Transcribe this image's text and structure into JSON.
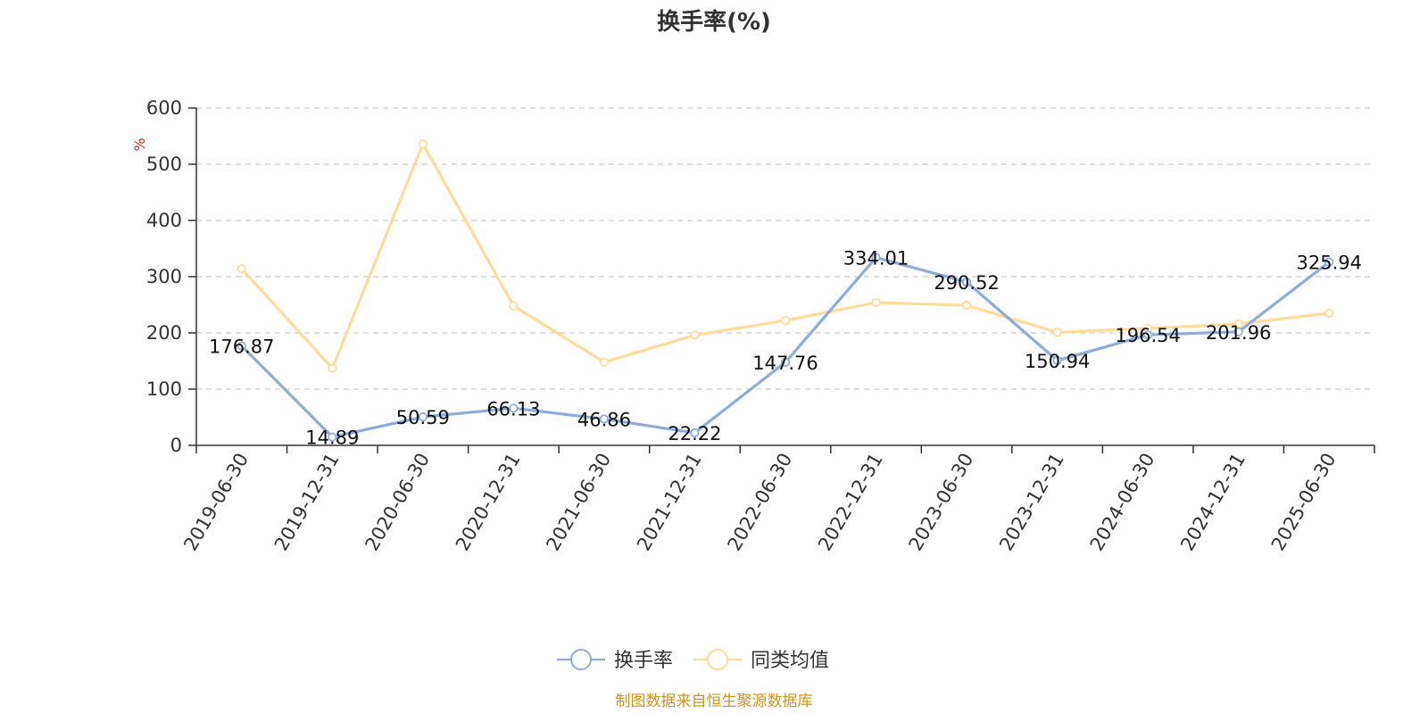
{
  "chart_data": {
    "type": "line",
    "title": "换手率(%)",
    "ylabel": "%",
    "ylim": [
      0,
      600
    ],
    "yticks": [
      0,
      100,
      200,
      300,
      400,
      500,
      600
    ],
    "grid": true,
    "legend_position": "bottom-center",
    "categories": [
      "2019-06-30",
      "2019-12-31",
      "2020-06-30",
      "2020-12-31",
      "2021-06-30",
      "2021-12-31",
      "2022-06-30",
      "2022-12-31",
      "2023-06-30",
      "2023-12-31",
      "2024-06-30",
      "2024-12-31",
      "2025-06-30"
    ],
    "series": [
      {
        "name": "换手率",
        "color": "#8eacd8",
        "values": [
          176.87,
          14.89,
          50.59,
          66.13,
          46.86,
          22.22,
          147.76,
          334.01,
          290.52,
          150.94,
          196.54,
          201.96,
          325.94
        ],
        "data_labels": [
          "176.87",
          "14.89",
          "50.59",
          "66.13",
          "46.86",
          "22.22",
          "147.76",
          "334.01",
          "290.52",
          "150.94",
          "196.54",
          "201.96",
          "325.94"
        ]
      },
      {
        "name": "同类均值",
        "color": "#fddc9b",
        "values": [
          314,
          137,
          536,
          248,
          148,
          196,
          222,
          254,
          249,
          201,
          208,
          216,
          235
        ]
      }
    ],
    "source": "制图数据来自恒生聚源数据库",
    "source_color": "#c8961e"
  }
}
